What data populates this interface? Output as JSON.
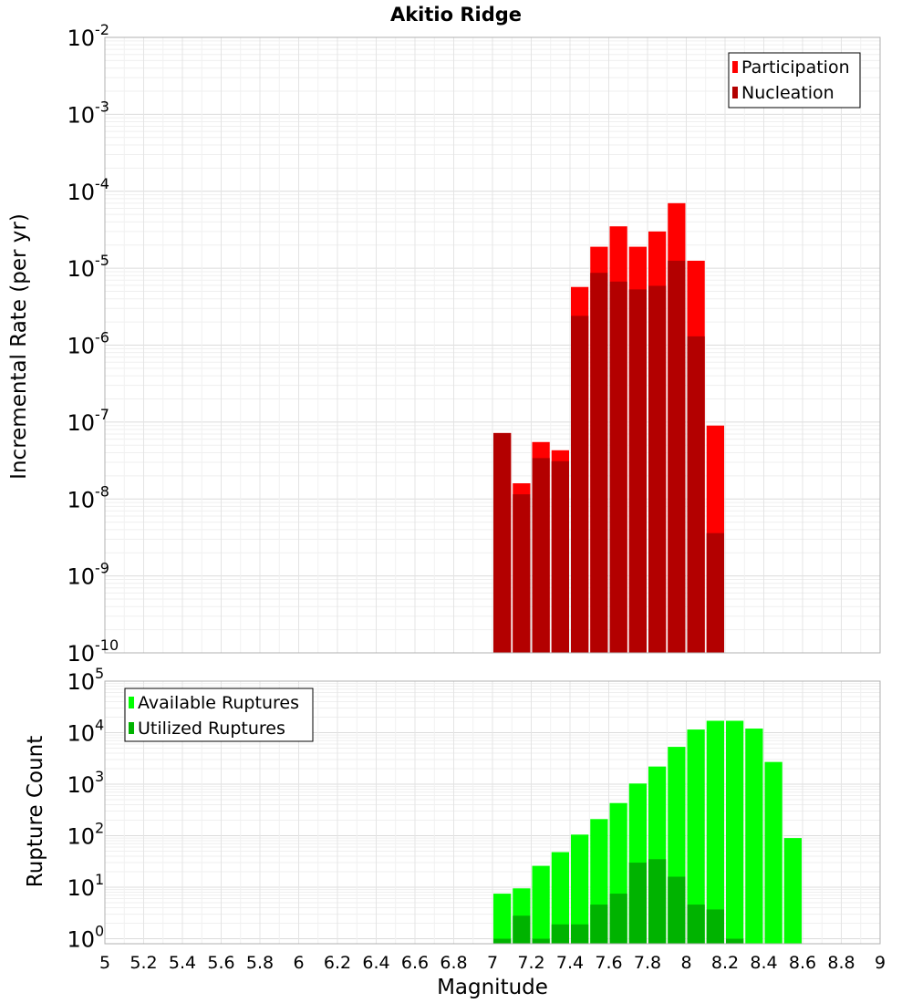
{
  "chart_data": [
    {
      "type": "bar",
      "title": "Akitio Ridge",
      "xlabel": "",
      "ylabel": "Incremental Rate (per yr)",
      "yscale": "log",
      "ylim_exp": [
        -10,
        -2
      ],
      "xlim": [
        5,
        9
      ],
      "bar_width": 0.1,
      "legend_position": "top-right",
      "series": [
        {
          "name": "Participation",
          "color": "#ff0000",
          "x": [
            7.05,
            7.15,
            7.25,
            7.35,
            7.45,
            7.55,
            7.65,
            7.75,
            7.85,
            7.95,
            8.05,
            8.15
          ],
          "values": [
            7.2e-08,
            1.6e-08,
            5.5e-08,
            4.3e-08,
            5.7e-06,
            1.9e-05,
            3.5e-05,
            1.9e-05,
            3e-05,
            7e-05,
            1.25e-05,
            9e-08
          ]
        },
        {
          "name": "Nucleation",
          "color": "#b30000",
          "x": [
            7.05,
            7.15,
            7.25,
            7.35,
            7.45,
            7.55,
            7.65,
            7.75,
            7.85,
            7.95,
            8.05,
            8.15
          ],
          "values": [
            7.2e-08,
            1.15e-08,
            3.4e-08,
            3.1e-08,
            2.4e-06,
            8.7e-06,
            6.7e-06,
            5.3e-06,
            5.9e-06,
            1.25e-05,
            1.3e-06,
            3.6e-09
          ]
        }
      ]
    },
    {
      "type": "bar",
      "title": "",
      "xlabel": "Magnitude",
      "ylabel": "Rupture Count",
      "yscale": "log",
      "ylim_exp": [
        0,
        5
      ],
      "y_floor": 0.8,
      "xlim": [
        5,
        9
      ],
      "bar_width": 0.1,
      "legend_position": "top-left",
      "x_ticks": [
        "5",
        "5.2",
        "5.4",
        "5.6",
        "5.8",
        "6",
        "6.2",
        "6.4",
        "6.6",
        "6.8",
        "7",
        "7.2",
        "7.4",
        "7.6",
        "7.8",
        "8",
        "8.2",
        "8.4",
        "8.6",
        "8.8",
        "9"
      ],
      "series": [
        {
          "name": "Available Ruptures",
          "color": "#00ff00",
          "x": [
            7.05,
            7.15,
            7.25,
            7.35,
            7.45,
            7.55,
            7.65,
            7.75,
            7.85,
            7.95,
            8.05,
            8.15,
            8.25,
            8.35,
            8.45,
            8.55
          ],
          "values": [
            7.5,
            9.5,
            26,
            48,
            105,
            210,
            430,
            1030,
            2200,
            5300,
            11500,
            17000,
            17000,
            12000,
            2700,
            90
          ]
        },
        {
          "name": "Utilized Ruptures",
          "color": "#00b300",
          "x": [
            7.05,
            7.15,
            7.25,
            7.35,
            7.45,
            7.55,
            7.65,
            7.75,
            7.85,
            7.95,
            8.05,
            8.15,
            8.25
          ],
          "values": [
            1,
            2.8,
            1,
            1.9,
            1.9,
            4.6,
            7.5,
            30,
            35,
            16,
            4.6,
            3.7,
            1
          ]
        }
      ]
    }
  ]
}
